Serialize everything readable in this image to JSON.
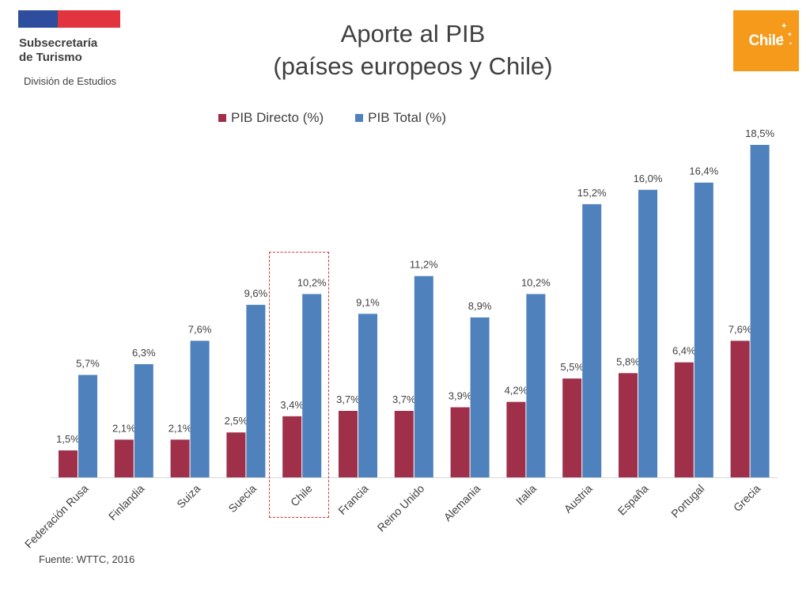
{
  "header": {
    "org_line1": "Subsecretaría",
    "org_line2": "de Turismo",
    "division": "División de Estudios",
    "brand": "Chile"
  },
  "colors": {
    "flag_blue": "#2e4d9c",
    "flag_red": "#e2343f",
    "brand_orange": "#f59a1b",
    "highlight_border": "#d13a3a"
  },
  "chart_data": {
    "type": "bar",
    "title": "Aporte al PIB\n(países europeos y Chile)",
    "title_lines": [
      "Aporte al PIB",
      "(países europeos y Chile)"
    ],
    "categories": [
      "Federación Rusa",
      "Finlandia",
      "Suiza",
      "Suecia",
      "Chile",
      "Francia",
      "Reino Unido",
      "Alemania",
      "Italia",
      "Austria",
      "España",
      "Portugal",
      "Grecia"
    ],
    "series": [
      {
        "name": "PIB Directo (%)",
        "color": "#a0304a",
        "values": [
          1.5,
          2.1,
          2.1,
          2.5,
          3.4,
          3.7,
          3.7,
          3.9,
          4.2,
          5.5,
          5.8,
          6.4,
          7.6
        ],
        "labels": [
          "1,5%",
          "2,1%",
          "2,1%",
          "2,5%",
          "3,4%",
          "3,7%",
          "3,7%",
          "3,9%",
          "4,2%",
          "5,5%",
          "5,8%",
          "6,4%",
          "7,6%"
        ]
      },
      {
        "name": "PIB Total (%)",
        "color": "#4f81bd",
        "values": [
          5.7,
          6.3,
          7.6,
          9.6,
          10.2,
          9.1,
          11.2,
          8.9,
          10.2,
          15.2,
          16.0,
          16.4,
          18.5
        ],
        "labels": [
          "5,7%",
          "6,3%",
          "7,6%",
          "9,6%",
          "10,2%",
          "9,1%",
          "11,2%",
          "8,9%",
          "10,2%",
          "15,2%",
          "16,0%",
          "16,4%",
          "18,5%"
        ]
      }
    ],
    "highlighted_category": "Chile",
    "legend_position": "top",
    "grid": false,
    "ylim": [
      0,
      18.5
    ]
  },
  "footer": {
    "source": "Fuente: WTTC, 2016"
  }
}
